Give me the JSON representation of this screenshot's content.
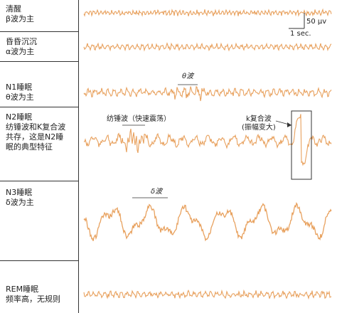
{
  "stages": [
    {
      "id": "awake",
      "label_lines": [
        "清醒",
        "β波为主"
      ],
      "amp": 4,
      "freq": 1.25,
      "noise": 0.9
    },
    {
      "id": "drowsy",
      "label_lines": [
        "昏昏沉沉",
        "α波为主"
      ],
      "amp": 5,
      "freq": 0.9,
      "noise": 0.6
    },
    {
      "id": "n1",
      "label_lines": [
        "N1睡眠",
        "θ波为主"
      ],
      "amp": 6,
      "freq": 0.7,
      "noise": 0.8
    },
    {
      "id": "n2",
      "label_lines": [
        "N2睡眠",
        "纺锤波和K复合波",
        "共存，这是N2睡",
        "眠的典型特征"
      ],
      "amp": 9,
      "freq": 0.35,
      "noise": 0.7
    },
    {
      "id": "n3",
      "label_lines": [
        "N3睡眠",
        "δ波为主"
      ],
      "amp": 30,
      "freq": 0.12,
      "noise": 0.25
    },
    {
      "id": "rem",
      "label_lines": [
        "REM睡眠",
        "频率高，无规则"
      ],
      "amp": 5,
      "freq": 0.8,
      "noise": 0.9
    }
  ],
  "annotations": {
    "scale_voltage": "50 μv",
    "scale_time": "1 sec.",
    "theta_label": "θ波",
    "spindle_label": "纺锤波（快速震荡）",
    "kcomplex_label_1": "k复合波",
    "kcomplex_label_2": "(振幅变大)",
    "delta_label": "δ波"
  },
  "colors": {
    "wave": "#e8a15e",
    "line": "#333333",
    "text": "#222222"
  }
}
